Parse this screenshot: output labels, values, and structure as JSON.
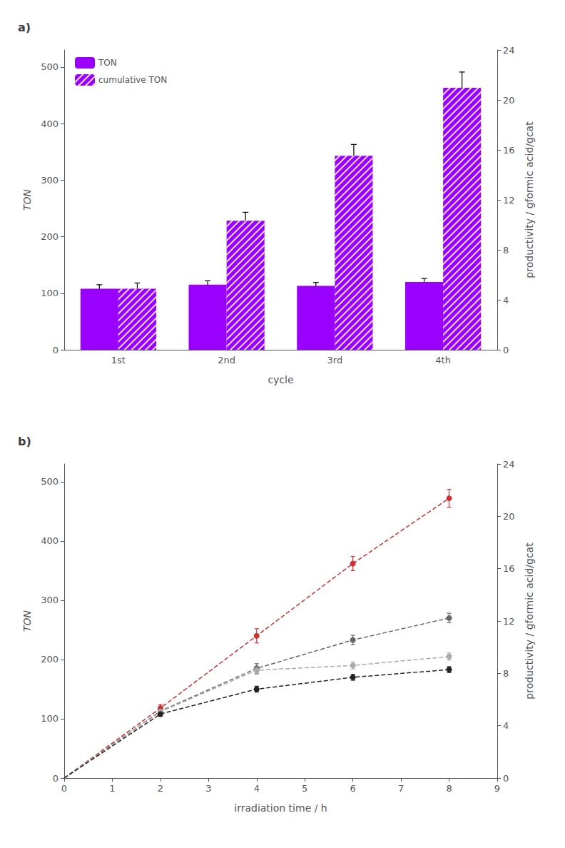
{
  "chart_data": [
    {
      "type": "bar",
      "title": "a)",
      "categories": [
        "1st",
        "2nd",
        "3rd",
        "4th"
      ],
      "xlabel": "cycle",
      "ylabel": "TON",
      "y2label": "productivity / gformic acid/gcat",
      "series": [
        {
          "name": "TON",
          "color": "#9900FF",
          "values": [
            108,
            115,
            113,
            120
          ],
          "errors": [
            7,
            7,
            6,
            6
          ]
        },
        {
          "name": "cumulative TON",
          "color": "#9900FF",
          "values": [
            108,
            228,
            343,
            463
          ],
          "errors": [
            10,
            15,
            20,
            28
          ]
        }
      ],
      "ylim": [
        0,
        530
      ],
      "yticks": [
        0,
        100,
        200,
        300,
        400,
        500
      ],
      "y2lim": [
        0,
        24
      ],
      "y2ticks": [
        0,
        4,
        8,
        12,
        16,
        20,
        24
      ],
      "legend": "upper left",
      "grid": false
    },
    {
      "type": "line",
      "title": "b)",
      "x": [
        0,
        2,
        4,
        6,
        8
      ],
      "xlabel": "irradiation time / h",
      "ylabel": "TON",
      "y2label": "productivity / gformic acid/gcat",
      "series": [
        {
          "color": "#CC3333",
          "values": [
            0,
            118,
            240,
            362,
            472
          ],
          "errors": [
            0,
            6,
            12,
            12,
            15
          ],
          "marker": "circle",
          "line_style": "dashed"
        },
        {
          "color": "#666666",
          "values": [
            0,
            113,
            185,
            233,
            270
          ],
          "errors": [
            0,
            5,
            8,
            8,
            8
          ],
          "marker": "circle",
          "line_style": "dashed"
        },
        {
          "color": "#AAAAAA",
          "values": [
            0,
            112,
            182,
            190,
            205
          ],
          "errors": [
            0,
            5,
            7,
            6,
            6
          ],
          "marker": "circle",
          "line_style": "dashed"
        },
        {
          "color": "#222222",
          "values": [
            0,
            108,
            150,
            170,
            183
          ],
          "errors": [
            0,
            4,
            5,
            5,
            5
          ],
          "marker": "circle",
          "line_style": "dashed"
        }
      ],
      "xlim": [
        0,
        9
      ],
      "xticks": [
        0,
        1,
        2,
        3,
        4,
        5,
        6,
        7,
        8,
        9
      ],
      "ylim": [
        0,
        530
      ],
      "yticks": [
        0,
        100,
        200,
        300,
        400,
        500
      ],
      "y2lim": [
        0,
        24
      ],
      "y2ticks": [
        0,
        4,
        8,
        12,
        16,
        20,
        24
      ],
      "grid": false
    }
  ]
}
